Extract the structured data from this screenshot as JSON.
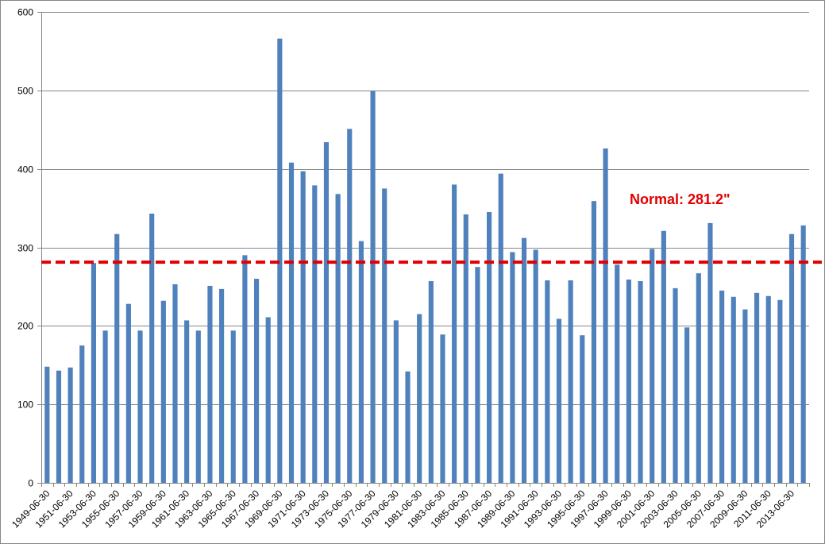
{
  "chart_data": {
    "type": "bar",
    "title": "",
    "xlabel": "",
    "ylabel": "",
    "ylim": [
      0,
      600
    ],
    "yticks": [
      0,
      100,
      200,
      300,
      400,
      500,
      600
    ],
    "grid": true,
    "categories": [
      "1949-06-30",
      "1950-06-30",
      "1951-06-30",
      "1952-06-30",
      "1953-06-30",
      "1954-06-30",
      "1955-06-30",
      "1956-06-30",
      "1957-06-30",
      "1958-06-30",
      "1959-06-30",
      "1960-06-30",
      "1961-06-30",
      "1962-06-30",
      "1963-06-30",
      "1964-06-30",
      "1965-06-30",
      "1966-06-30",
      "1967-06-30",
      "1968-06-30",
      "1969-06-30",
      "1970-06-30",
      "1971-06-30",
      "1972-06-30",
      "1973-06-30",
      "1974-06-30",
      "1975-06-30",
      "1976-06-30",
      "1977-06-30",
      "1978-06-30",
      "1979-06-30",
      "1980-06-30",
      "1981-06-30",
      "1982-06-30",
      "1983-06-30",
      "1984-06-30",
      "1985-06-30",
      "1986-06-30",
      "1987-06-30",
      "1988-06-30",
      "1989-06-30",
      "1990-06-30",
      "1991-06-30",
      "1992-06-30",
      "1993-06-30",
      "1994-06-30",
      "1995-06-30",
      "1996-06-30",
      "1997-06-30",
      "1998-06-30",
      "1999-06-30",
      "2000-06-30",
      "2001-06-30",
      "2002-06-30",
      "2003-06-30",
      "2004-06-30",
      "2005-06-30",
      "2006-06-30",
      "2007-06-30",
      "2008-06-30",
      "2009-06-30",
      "2010-06-30",
      "2011-06-30",
      "2012-06-30",
      "2013-06-30",
      "2014-06-30"
    ],
    "tick_labels_shown": [
      "1949-06-30",
      "1951-06-30",
      "1953-06-30",
      "1955-06-30",
      "1957-06-30",
      "1959-06-30",
      "1961-06-30",
      "1963-06-30",
      "1965-06-30",
      "1967-06-30",
      "1969-06-30",
      "1971-06-30",
      "1973-06-30",
      "1975-06-30",
      "1977-06-30",
      "1979-06-30",
      "1981-06-30",
      "1983-06-30",
      "1985-06-30",
      "1987-06-30",
      "1989-06-30",
      "1991-06-30",
      "1993-06-30",
      "1995-06-30",
      "1997-06-30",
      "1999-06-30",
      "2001-06-30",
      "2003-06-30",
      "2005-06-30",
      "2007-06-30",
      "2009-06-30",
      "2011-06-30",
      "2013-06-30"
    ],
    "values": [
      148,
      143,
      147,
      175,
      280,
      194,
      317,
      228,
      194,
      343,
      232,
      253,
      207,
      194,
      251,
      247,
      194,
      290,
      260,
      211,
      566,
      408,
      397,
      379,
      434,
      368,
      451,
      308,
      499,
      375,
      207,
      142,
      215,
      257,
      189,
      380,
      342,
      275,
      345,
      394,
      294,
      312,
      297,
      258,
      209,
      258,
      188,
      359,
      426,
      278,
      259,
      257,
      298,
      321,
      248,
      198,
      267,
      331,
      245,
      237,
      221,
      242,
      238,
      233,
      317,
      328
    ],
    "bar_color": "#4F81BD",
    "reference_line": {
      "label": "Normal:  281.2\"",
      "value": 281.2,
      "color": "#E00000",
      "style": "dashed"
    }
  }
}
